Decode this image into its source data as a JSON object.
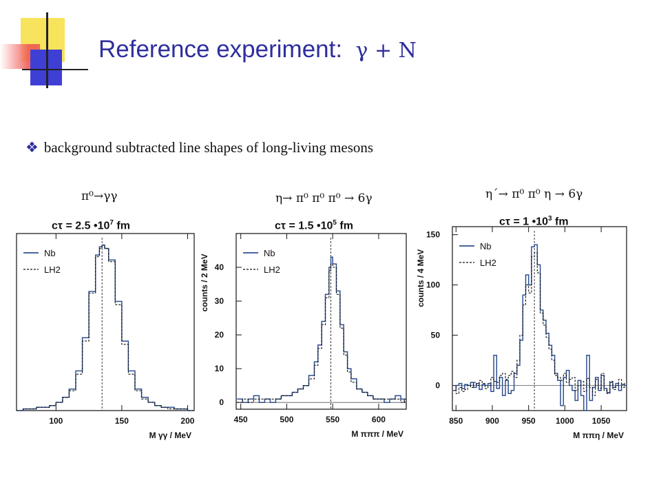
{
  "title": {
    "text": "Reference experiment:",
    "symbol": "γ + N"
  },
  "bullet": {
    "mark": "❖",
    "text": "background subtracted line shapes of long-living mesons"
  },
  "colors": {
    "title": "#2e2e9e",
    "nb_line": "#2f4f8f",
    "lh2_line": "#111111",
    "deco_yellow": "#f7e35c",
    "deco_red": "#ef5350",
    "deco_blue": "#3f3fd6"
  },
  "panels": [
    {
      "decay": "π⁰→γγ",
      "ctau_prefix": "cτ = 2.5 •10",
      "ctau_exp": "7",
      "ctau_suffix": " fm"
    },
    {
      "decay": "η→ π⁰ π⁰ π⁰ → 6γ",
      "ctau_prefix": "cτ = 1.5 •10",
      "ctau_exp": "5",
      "ctau_suffix": " fm"
    },
    {
      "decay": "η´→ π⁰ π⁰ η → 6γ",
      "ctau_prefix": "cτ = 1 •10",
      "ctau_exp": "3",
      "ctau_suffix": " fm"
    }
  ],
  "chart_data": [
    {
      "type": "line",
      "step": true,
      "xlabel": "M γγ / MeV",
      "ylabel": "",
      "xlim": [
        70,
        205
      ],
      "ylim": [
        0,
        1.07
      ],
      "xticks": [
        100,
        150,
        200
      ],
      "yticks": [],
      "marker_x": 135,
      "legend": [
        "Nb",
        "LH2"
      ],
      "legend_position": "top-left",
      "series": [
        {
          "name": "Nb",
          "style": "solid",
          "x": [
            70,
            75,
            80,
            85,
            90,
            95,
            100,
            105,
            110,
            115,
            120,
            125,
            130,
            133,
            135,
            137,
            140,
            145,
            150,
            155,
            160,
            165,
            170,
            175,
            180,
            185,
            190,
            195,
            200,
            205
          ],
          "y": [
            0.0,
            0.01,
            0.01,
            0.02,
            0.02,
            0.03,
            0.05,
            0.08,
            0.13,
            0.24,
            0.44,
            0.72,
            0.94,
            0.99,
            1.0,
            0.98,
            0.91,
            0.66,
            0.42,
            0.24,
            0.13,
            0.08,
            0.05,
            0.03,
            0.02,
            0.02,
            0.01,
            0.01,
            0.0,
            0.0
          ]
        },
        {
          "name": "LH2",
          "style": "dashed",
          "x": [
            70,
            75,
            80,
            85,
            90,
            95,
            100,
            105,
            110,
            115,
            120,
            125,
            130,
            133,
            135,
            137,
            140,
            145,
            150,
            155,
            160,
            165,
            170,
            175,
            180,
            185,
            190,
            195,
            200,
            205
          ],
          "y": [
            0.0,
            0.01,
            0.01,
            0.02,
            0.02,
            0.03,
            0.05,
            0.08,
            0.12,
            0.22,
            0.42,
            0.71,
            0.93,
            0.98,
            1.0,
            0.98,
            0.9,
            0.64,
            0.4,
            0.22,
            0.12,
            0.07,
            0.05,
            0.03,
            0.02,
            0.01,
            0.01,
            0.01,
            0.0,
            0.0
          ]
        }
      ]
    },
    {
      "type": "line",
      "step": true,
      "xlabel": "M πππ / MeV",
      "ylabel": "counts / 2 MeV",
      "xlim": [
        445,
        630
      ],
      "ylim": [
        -2,
        50
      ],
      "xticks": [
        450,
        500,
        550,
        600
      ],
      "yticks": [
        0,
        10,
        20,
        30,
        40
      ],
      "marker_x": 548,
      "legend": [
        "Nb",
        "LH2"
      ],
      "legend_position": "top-left",
      "series": [
        {
          "name": "Nb",
          "style": "solid",
          "x": [
            446,
            452,
            458,
            464,
            470,
            476,
            482,
            488,
            494,
            500,
            506,
            512,
            518,
            524,
            530,
            534,
            538,
            542,
            546,
            548,
            550,
            554,
            558,
            562,
            566,
            570,
            576,
            582,
            588,
            594,
            600,
            606,
            612,
            618,
            624,
            628
          ],
          "y": [
            1,
            0,
            1,
            2,
            0,
            1,
            0,
            1,
            2,
            2,
            3,
            4,
            5,
            8,
            12,
            17,
            24,
            32,
            40,
            43,
            41,
            33,
            23,
            15,
            10,
            7,
            4,
            3,
            2,
            1,
            1,
            0,
            1,
            2,
            1,
            0
          ]
        },
        {
          "name": "LH2",
          "style": "dashed",
          "x": [
            446,
            452,
            458,
            464,
            470,
            476,
            482,
            488,
            494,
            500,
            506,
            512,
            518,
            524,
            530,
            534,
            538,
            542,
            546,
            548,
            550,
            554,
            558,
            562,
            566,
            570,
            576,
            582,
            588,
            594,
            600,
            606,
            612,
            618,
            624,
            628
          ],
          "y": [
            0,
            1,
            0,
            1,
            1,
            1,
            1,
            1,
            2,
            2,
            3,
            4,
            5,
            7,
            11,
            16,
            23,
            31,
            39,
            41,
            40,
            32,
            22,
            14,
            9,
            6,
            4,
            3,
            2,
            1,
            1,
            1,
            1,
            1,
            0,
            1
          ]
        }
      ]
    },
    {
      "type": "line",
      "step": true,
      "xlabel": "M ππη / MeV",
      "ylabel": "counts / 4 MeV",
      "xlim": [
        845,
        1085
      ],
      "ylim": [
        -25,
        158
      ],
      "xticks": [
        850,
        900,
        950,
        1000,
        1050
      ],
      "yticks": [
        0,
        50,
        100,
        150
      ],
      "marker_x": 958,
      "legend": [
        "Nb",
        "LH2"
      ],
      "legend_position": "top-left",
      "series": [
        {
          "name": "Nb",
          "style": "solid",
          "x": [
            846,
            850,
            854,
            858,
            862,
            866,
            870,
            874,
            878,
            882,
            886,
            890,
            894,
            898,
            902,
            906,
            910,
            914,
            918,
            922,
            926,
            930,
            934,
            938,
            942,
            946,
            950,
            954,
            958,
            962,
            966,
            970,
            974,
            978,
            982,
            986,
            990,
            994,
            998,
            1002,
            1006,
            1010,
            1014,
            1018,
            1022,
            1026,
            1030,
            1034,
            1038,
            1042,
            1046,
            1050,
            1054,
            1058,
            1062,
            1066,
            1070,
            1074,
            1078,
            1082
          ],
          "y": [
            -5,
            0,
            2,
            -3,
            1,
            0,
            3,
            -2,
            2,
            -4,
            1,
            0,
            2,
            -6,
            30,
            -3,
            8,
            -10,
            5,
            -8,
            -5,
            12,
            20,
            45,
            90,
            110,
            100,
            138,
            140,
            120,
            75,
            65,
            52,
            40,
            30,
            12,
            5,
            -20,
            8,
            15,
            0,
            -5,
            -15,
            5,
            -10,
            -30,
            30,
            -15,
            -2,
            8,
            -5,
            10,
            -3,
            -7,
            3,
            -2,
            2,
            -5,
            1,
            0
          ]
        },
        {
          "name": "LH2",
          "style": "dashed",
          "x": [
            846,
            850,
            854,
            858,
            862,
            866,
            870,
            874,
            878,
            882,
            886,
            890,
            894,
            898,
            902,
            906,
            910,
            914,
            918,
            922,
            926,
            930,
            934,
            938,
            942,
            946,
            950,
            954,
            958,
            962,
            966,
            970,
            974,
            978,
            982,
            986,
            990,
            994,
            998,
            1002,
            1006,
            1010,
            1014,
            1018,
            1022,
            1026,
            1030,
            1034,
            1038,
            1042,
            1046,
            1050,
            1054,
            1058,
            1062,
            1066,
            1070,
            1074,
            1078,
            1082
          ],
          "y": [
            0,
            -8,
            -2,
            -6,
            -4,
            0,
            -2,
            3,
            0,
            5,
            2,
            -3,
            0,
            8,
            4,
            3,
            10,
            12,
            6,
            10,
            14,
            8,
            25,
            50,
            80,
            100,
            92,
            128,
            132,
            112,
            72,
            60,
            48,
            36,
            25,
            10,
            8,
            5,
            12,
            3,
            6,
            8,
            -5,
            0,
            4,
            -6,
            7,
            -2,
            -10,
            6,
            -3,
            12,
            -5,
            -8,
            4,
            -4,
            0,
            6,
            -2,
            2
          ]
        }
      ]
    }
  ]
}
